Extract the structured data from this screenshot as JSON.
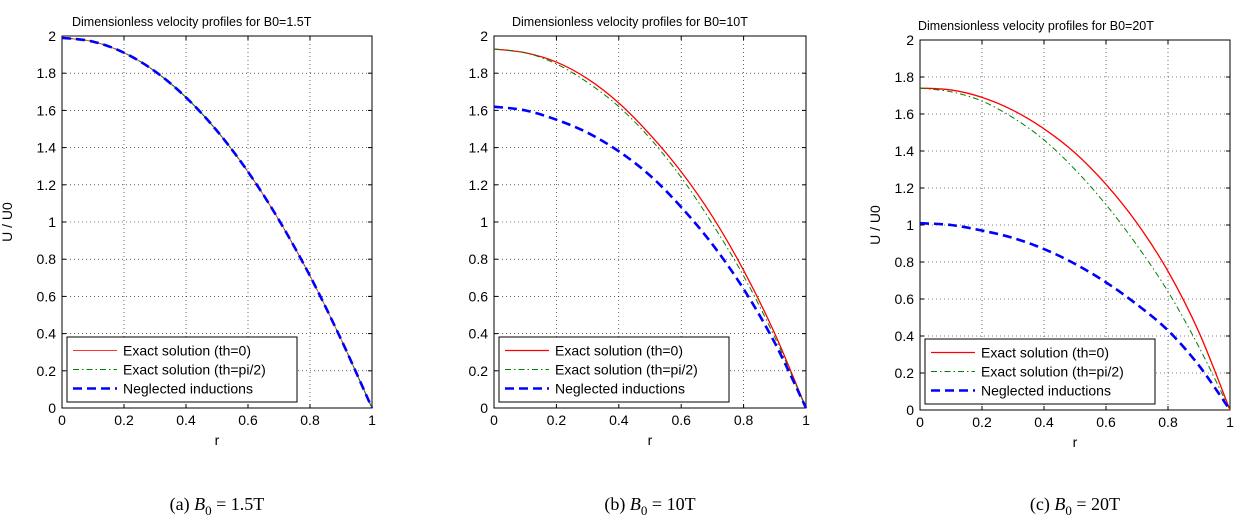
{
  "chart_data": [
    {
      "type": "line",
      "title": "Dimensionless velocity profiles for B0=1.5T",
      "xlabel": "r",
      "ylabel": "U / U0",
      "xlim": [
        0,
        1
      ],
      "ylim": [
        0,
        2
      ],
      "x_ticks": [
        "0",
        "0.2",
        "0.4",
        "0.6",
        "0.8",
        "1"
      ],
      "y_ticks": [
        "0",
        "0.2",
        "0.4",
        "0.6",
        "0.8",
        "1",
        "1.2",
        "1.4",
        "1.6",
        "1.8",
        "2"
      ],
      "grid": true,
      "legend_position": "bottom-left",
      "caption": {
        "label": "(a)",
        "math_base": "B",
        "math_sub": "0",
        "math_rest": " = 1.5T"
      },
      "x": [
        0,
        0.1,
        0.2,
        0.3,
        0.4,
        0.5,
        0.6,
        0.7,
        0.8,
        0.9,
        1.0
      ],
      "series": [
        {
          "name": "Exact solution (th=0)",
          "color": "#ff3333",
          "dash": "solid",
          "width": 1,
          "values": [
            1.99,
            1.97,
            1.91,
            1.81,
            1.67,
            1.49,
            1.27,
            1.01,
            0.71,
            0.37,
            0.0
          ]
        },
        {
          "name": "Exact solution (th=pi/2)",
          "color": "#008000",
          "dash": "dashdot",
          "width": 1,
          "values": [
            1.99,
            1.97,
            1.91,
            1.81,
            1.67,
            1.49,
            1.27,
            1.01,
            0.71,
            0.37,
            0.0
          ]
        },
        {
          "name": "Neglected inductions",
          "color": "#0000ff",
          "dash": "dashed",
          "width": 2.6,
          "values": [
            1.99,
            1.97,
            1.91,
            1.81,
            1.67,
            1.49,
            1.27,
            1.01,
            0.71,
            0.37,
            0.0
          ]
        }
      ]
    },
    {
      "type": "line",
      "title": "Dimensionless velocity profiles for B0=10T",
      "xlabel": "r",
      "ylabel": "",
      "xlim": [
        0,
        1
      ],
      "ylim": [
        0,
        2
      ],
      "x_ticks": [
        "0",
        "0.2",
        "0.4",
        "0.6",
        "0.8",
        "1"
      ],
      "y_ticks": [
        "0",
        "0.2",
        "0.4",
        "0.6",
        "0.8",
        "1",
        "1.2",
        "1.4",
        "1.6",
        "1.8",
        "2"
      ],
      "grid": true,
      "legend_position": "bottom-left",
      "caption": {
        "label": "(b)",
        "math_base": "B",
        "math_sub": "0",
        "math_rest": " = 10T"
      },
      "x": [
        0,
        0.1,
        0.2,
        0.3,
        0.4,
        0.5,
        0.6,
        0.7,
        0.8,
        0.9,
        1.0
      ],
      "series": [
        {
          "name": "Exact solution (th=0)",
          "color": "#ff0000",
          "dash": "solid",
          "width": 1.3,
          "values": [
            1.93,
            1.91,
            1.86,
            1.77,
            1.64,
            1.47,
            1.27,
            1.03,
            0.74,
            0.4,
            0.0
          ]
        },
        {
          "name": "Exact solution (th=pi/2)",
          "color": "#008000",
          "dash": "dashdot",
          "width": 1,
          "values": [
            1.93,
            1.91,
            1.85,
            1.75,
            1.62,
            1.45,
            1.24,
            0.99,
            0.71,
            0.38,
            0.0
          ]
        },
        {
          "name": "Neglected inductions",
          "color": "#0000ff",
          "dash": "dashed",
          "width": 2.6,
          "values": [
            1.62,
            1.6,
            1.55,
            1.48,
            1.38,
            1.25,
            1.08,
            0.88,
            0.64,
            0.35,
            0.0
          ]
        }
      ]
    },
    {
      "type": "line",
      "title": "Dimensionless velocity profiles for B0=20T",
      "xlabel": "r",
      "ylabel": "U / U0",
      "xlim": [
        0,
        1
      ],
      "ylim": [
        0,
        2
      ],
      "x_ticks": [
        "0",
        "0.2",
        "0.4",
        "0.6",
        "0.8",
        "1"
      ],
      "y_ticks": [
        "0",
        "0.2",
        "0.4",
        "0.6",
        "0.8",
        "1",
        "1.2",
        "1.4",
        "1.6",
        "1.8",
        "2"
      ],
      "grid": true,
      "legend_position": "bottom-left",
      "caption": {
        "label": "(c)",
        "math_base": "B",
        "math_sub": "0",
        "math_rest": " = 20T"
      },
      "x": [
        0,
        0.1,
        0.2,
        0.3,
        0.4,
        0.5,
        0.6,
        0.7,
        0.8,
        0.9,
        1.0
      ],
      "series": [
        {
          "name": "Exact solution (th=0)",
          "color": "#ff0000",
          "dash": "solid",
          "width": 1.3,
          "values": [
            1.74,
            1.73,
            1.69,
            1.62,
            1.52,
            1.39,
            1.22,
            1.01,
            0.75,
            0.42,
            0.0
          ]
        },
        {
          "name": "Exact solution (th=pi/2)",
          "color": "#008000",
          "dash": "dashdot",
          "width": 1,
          "values": [
            1.74,
            1.72,
            1.67,
            1.58,
            1.46,
            1.3,
            1.11,
            0.89,
            0.64,
            0.34,
            0.0
          ]
        },
        {
          "name": "Neglected inductions",
          "color": "#0000ff",
          "dash": "dashed",
          "width": 2.6,
          "values": [
            1.01,
            1.0,
            0.97,
            0.93,
            0.87,
            0.79,
            0.69,
            0.57,
            0.43,
            0.24,
            0.0
          ]
        }
      ]
    }
  ]
}
